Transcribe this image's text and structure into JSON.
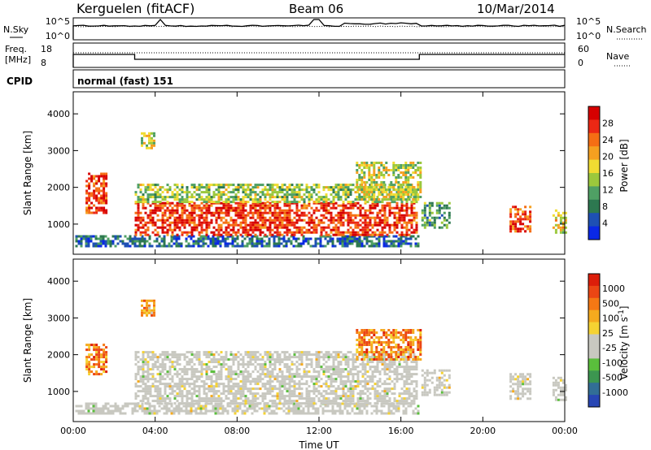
{
  "header": {
    "station": "Kerguelen (fitACF)",
    "beam": "Beam 06",
    "date": "10/Mar/2014"
  },
  "top_panels": {
    "nsky_label": "N.Sky",
    "nsearch_label": "N.Search",
    "noise_left_ticks": [
      "10^5",
      "10^0"
    ],
    "noise_right_ticks": [
      "10^5",
      "10^0"
    ],
    "freq_label_line1": "Freq.",
    "freq_label_line2": "[MHz]",
    "freq_ticks": [
      "18",
      "8"
    ],
    "nave_label": "Nave",
    "nave_ticks": [
      "60",
      "0"
    ],
    "cpid_label": "CPID",
    "cpid_value": "normal (fast) 151"
  },
  "chart_data": [
    {
      "type": "heatmap",
      "title": "",
      "xlabel": "Time UT",
      "ylabel": "Slant Range [km]",
      "x_ticks": [
        "00:00",
        "04:00",
        "08:00",
        "12:00",
        "16:00",
        "20:00",
        "00:00"
      ],
      "y_ticks": [
        "1000",
        "2000",
        "3000",
        "4000"
      ],
      "xlim_hours": [
        0,
        24
      ],
      "ylim_km": [
        180,
        4600
      ],
      "colorbar": {
        "label": "Power [dB]",
        "ticks": [
          "4",
          "8",
          "12",
          "16",
          "20",
          "24",
          "28"
        ],
        "colors": [
          "#0a28e6",
          "#1e50b4",
          "#2d7850",
          "#4fa064",
          "#9bc83c",
          "#f0dc32",
          "#f5a020",
          "#f56e14",
          "#eb2814",
          "#d60000"
        ]
      },
      "features": [
        {
          "t": [
            0.1,
            16.9
          ],
          "range_km": [
            400,
            700
          ],
          "level": 0.2
        },
        {
          "t": [
            0.6,
            1.6
          ],
          "range_km": [
            1300,
            2400
          ],
          "level": 0.85
        },
        {
          "t": [
            3.0,
            16.8
          ],
          "range_km": [
            700,
            1600
          ],
          "level": 0.85
        },
        {
          "t": [
            3.0,
            16.8
          ],
          "range_km": [
            1600,
            2100
          ],
          "level": 0.45
        },
        {
          "t": [
            13.8,
            16.9
          ],
          "range_km": [
            1700,
            2700
          ],
          "level": 0.5
        },
        {
          "t": [
            3.3,
            4.0
          ],
          "range_km": [
            3100,
            3500
          ],
          "level": 0.5
        },
        {
          "t": [
            17.0,
            18.4
          ],
          "range_km": [
            900,
            1600
          ],
          "level": 0.35
        },
        {
          "t": [
            21.3,
            22.3
          ],
          "range_km": [
            800,
            1500
          ],
          "level": 0.8
        },
        {
          "t": [
            23.4,
            24.0
          ],
          "range_km": [
            800,
            1400
          ],
          "level": 0.55
        }
      ]
    },
    {
      "type": "heatmap",
      "title": "",
      "xlabel": "Time UT",
      "ylabel": "Slant Range [km]",
      "x_ticks": [
        "00:00",
        "04:00",
        "08:00",
        "12:00",
        "16:00",
        "20:00",
        "00:00"
      ],
      "y_ticks": [
        "1000",
        "2000",
        "3000",
        "4000"
      ],
      "xlim_hours": [
        0,
        24
      ],
      "ylim_km": [
        180,
        4600
      ],
      "colorbar": {
        "label": "Velocity [m s^-1]",
        "ticks": [
          "1000",
          "500",
          "100",
          "25",
          "-25",
          "-100",
          "-500",
          "-1000"
        ],
        "colors": [
          "#2846b4",
          "#326e96",
          "#3c9650",
          "#5abe3c",
          "#c8c8c0",
          "#c8c8c0",
          "#f5d232",
          "#f5aa1e",
          "#f57814",
          "#eb4614",
          "#dc1e0a"
        ]
      },
      "features": [
        {
          "t": [
            0.1,
            16.9
          ],
          "range_km": [
            400,
            700
          ],
          "level": 0.5
        },
        {
          "t": [
            0.6,
            1.6
          ],
          "range_km": [
            1500,
            2300
          ],
          "level": 0.75
        },
        {
          "t": [
            3.0,
            16.8
          ],
          "range_km": [
            700,
            2100
          ],
          "level": 0.5
        },
        {
          "t": [
            13.8,
            16.9
          ],
          "range_km": [
            1900,
            2700
          ],
          "level": 0.75
        },
        {
          "t": [
            3.3,
            4.0
          ],
          "range_km": [
            3100,
            3500
          ],
          "level": 0.7
        },
        {
          "t": [
            17.0,
            18.4
          ],
          "range_km": [
            900,
            1600
          ],
          "level": 0.5
        },
        {
          "t": [
            21.3,
            22.3
          ],
          "range_km": [
            800,
            1500
          ],
          "level": 0.5
        },
        {
          "t": [
            23.4,
            24.0
          ],
          "range_km": [
            800,
            1400
          ],
          "level": 0.5
        }
      ]
    }
  ]
}
